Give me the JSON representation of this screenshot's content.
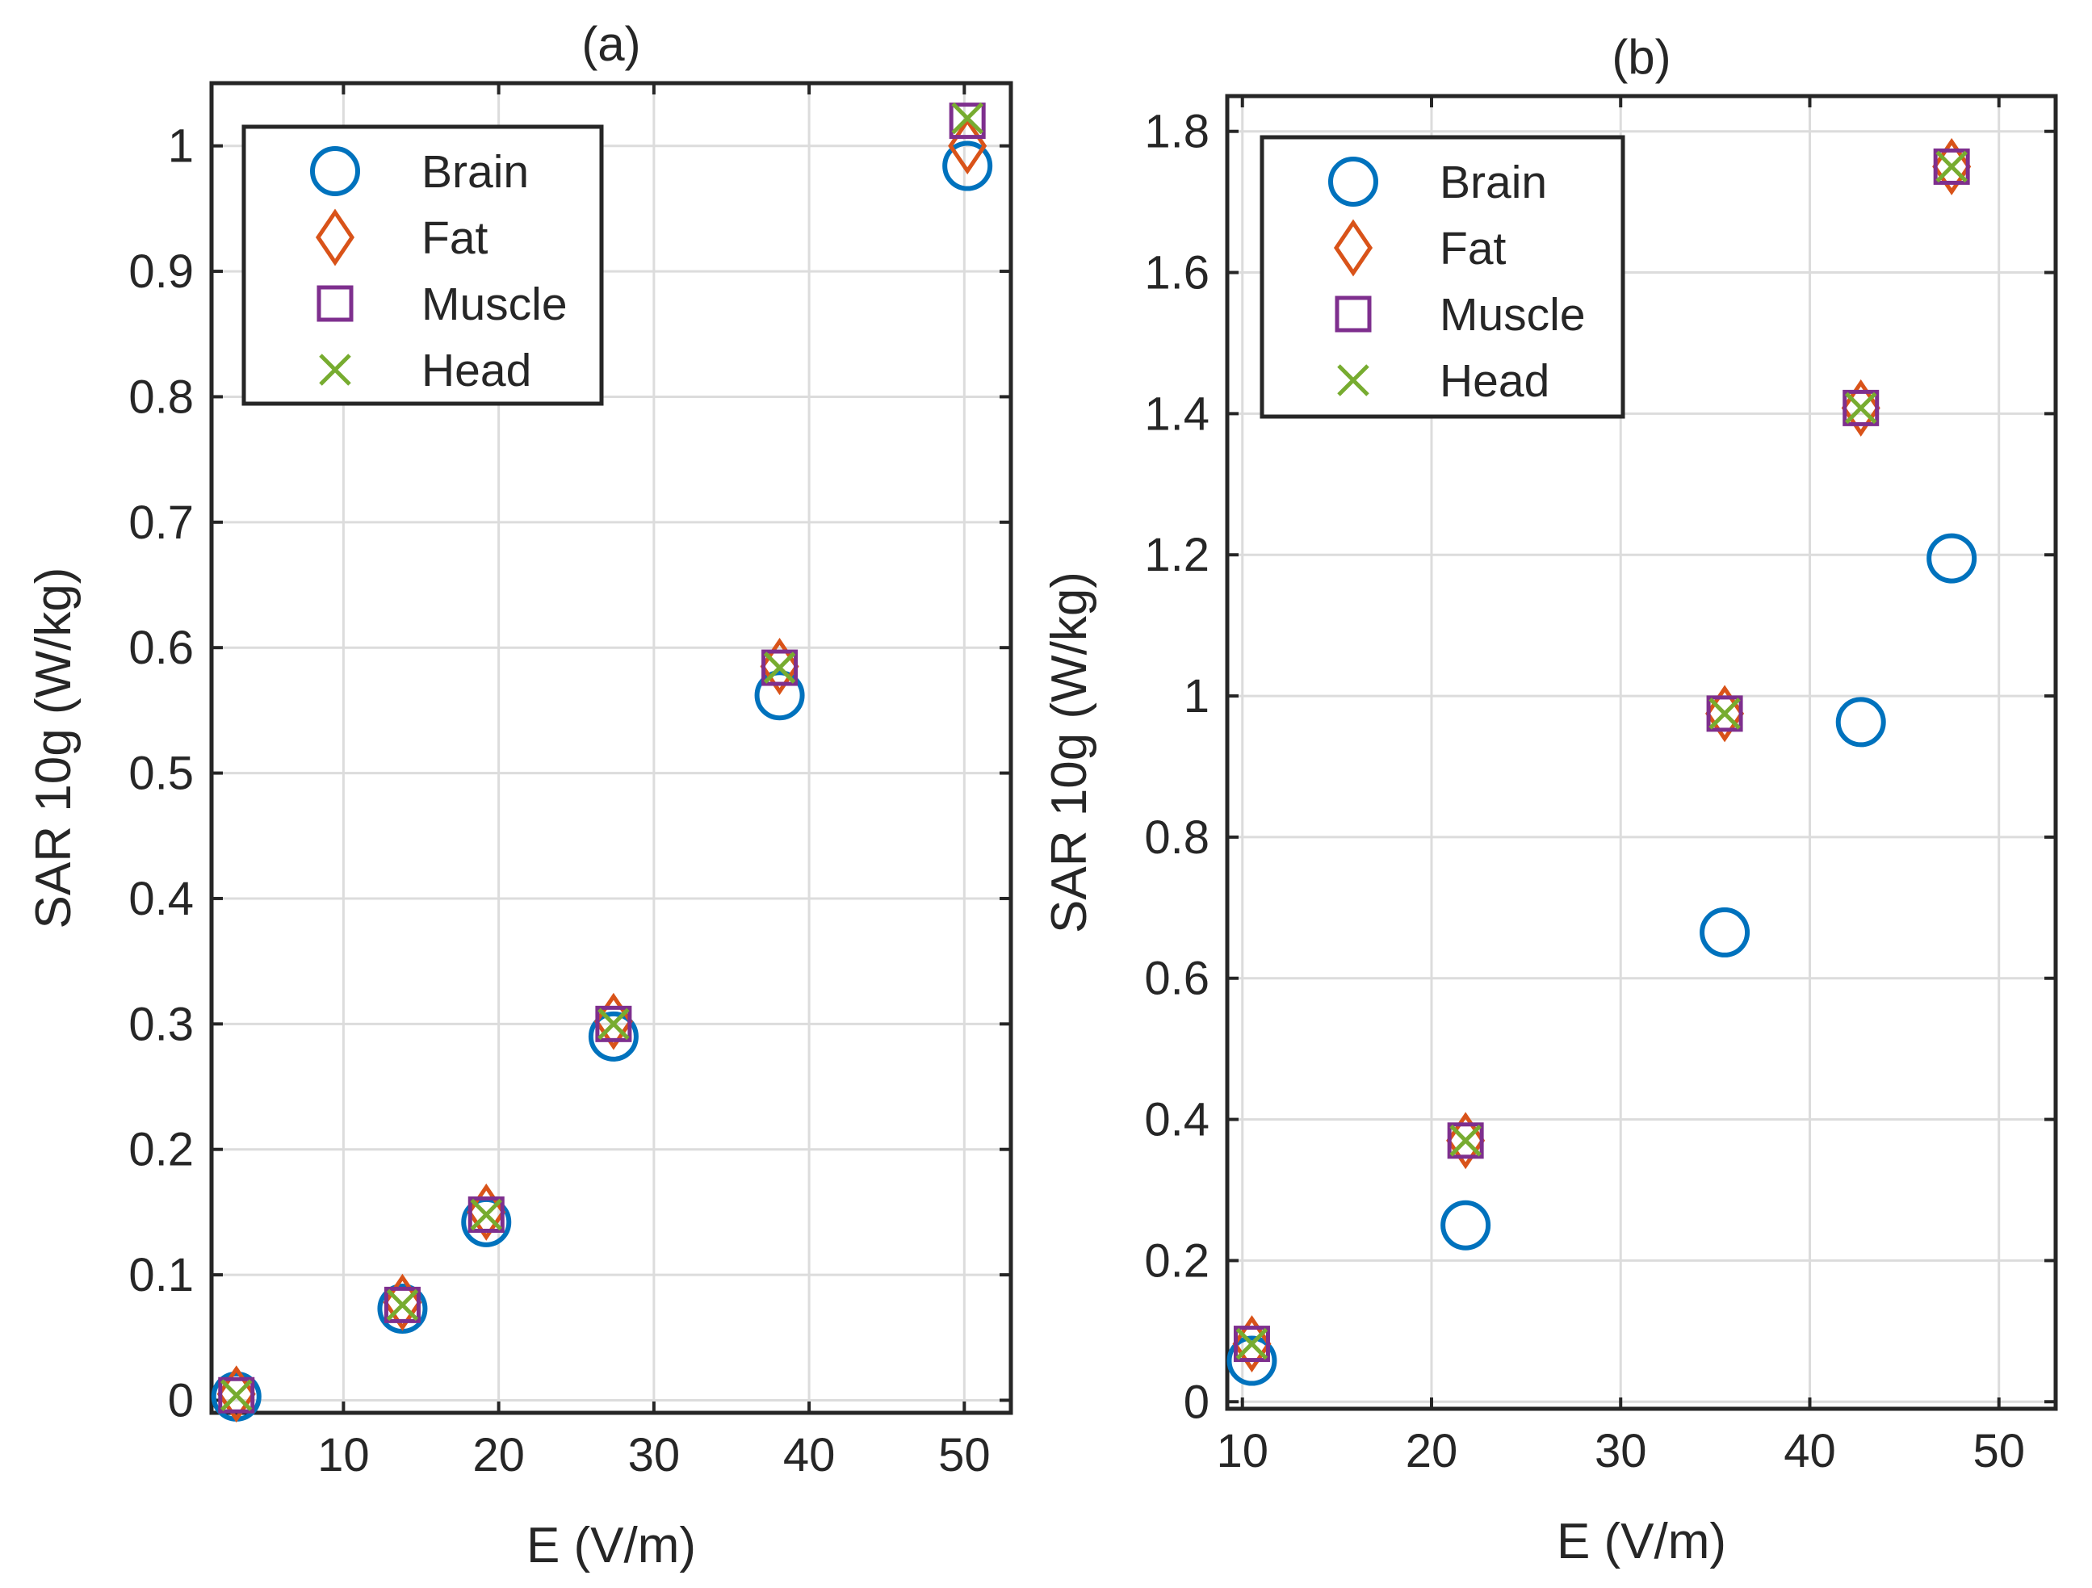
{
  "chart_data": [
    {
      "type": "scatter",
      "title": "(a)",
      "xlabel": "E (V/m)",
      "ylabel": "SAR 10g (W/kg)",
      "xlim": [
        1.5,
        53
      ],
      "ylim": [
        -0.01,
        1.05
      ],
      "xticks": [
        10,
        20,
        30,
        40,
        50
      ],
      "xtick_labels": [
        "10",
        "20",
        "30",
        "40",
        "50"
      ],
      "yticks": [
        0,
        0.1,
        0.2,
        0.3,
        0.4,
        0.5,
        0.6,
        0.7,
        0.8,
        0.9,
        1
      ],
      "ytick_labels": [
        "0",
        "0.1",
        "0.2",
        "0.3",
        "0.4",
        "0.5",
        "0.6",
        "0.7",
        "0.8",
        "0.9",
        "1"
      ],
      "grid": true,
      "legend_position": "top-left",
      "x": [
        3.1,
        13.8,
        19.2,
        27.4,
        38.1,
        50.2
      ],
      "series": [
        {
          "name": "Brain",
          "marker": "circle",
          "color": "#0072BD",
          "values": [
            0.003,
            0.073,
            0.142,
            0.29,
            0.562,
            0.984
          ]
        },
        {
          "name": "Fat",
          "marker": "diamond",
          "color": "#D95319",
          "values": [
            0.005,
            0.078,
            0.15,
            0.302,
            0.585,
            1.0
          ]
        },
        {
          "name": "Muscle",
          "marker": "square",
          "color": "#7E2F8E",
          "values": [
            0.004,
            0.076,
            0.148,
            0.3,
            0.584,
            1.02
          ]
        },
        {
          "name": "Head",
          "marker": "x",
          "color": "#77AC30",
          "values": [
            0.004,
            0.076,
            0.148,
            0.3,
            0.584,
            1.022
          ]
        }
      ]
    },
    {
      "type": "scatter",
      "title": "(b)",
      "xlabel": "E (V/m)",
      "ylabel": "SAR 10g (W/kg)",
      "xlim": [
        9.2,
        53
      ],
      "ylim": [
        -0.01,
        1.85
      ],
      "xticks": [
        10,
        20,
        30,
        40,
        50
      ],
      "xtick_labels": [
        "10",
        "20",
        "30",
        "40",
        "50"
      ],
      "yticks": [
        0,
        0.2,
        0.4,
        0.6,
        0.8,
        1,
        1.2,
        1.4,
        1.6,
        1.8
      ],
      "ytick_labels": [
        "0",
        "0.2",
        "0.4",
        "0.6",
        "0.8",
        "1",
        "1.2",
        "1.4",
        "1.6",
        "1.8"
      ],
      "grid": true,
      "legend_position": "top-left",
      "x": [
        10.5,
        21.8,
        35.5,
        42.7,
        47.5
      ],
      "series": [
        {
          "name": "Brain",
          "marker": "circle",
          "color": "#0072BD",
          "values": [
            0.058,
            0.25,
            0.665,
            0.963,
            1.195
          ]
        },
        {
          "name": "Fat",
          "marker": "diamond",
          "color": "#D95319",
          "values": [
            0.082,
            0.37,
            0.975,
            1.408,
            1.75
          ]
        },
        {
          "name": "Muscle",
          "marker": "square",
          "color": "#7E2F8E",
          "values": [
            0.082,
            0.37,
            0.975,
            1.408,
            1.75
          ]
        },
        {
          "name": "Head",
          "marker": "x",
          "color": "#77AC30",
          "values": [
            0.082,
            0.37,
            0.975,
            1.408,
            1.75
          ]
        }
      ]
    }
  ]
}
